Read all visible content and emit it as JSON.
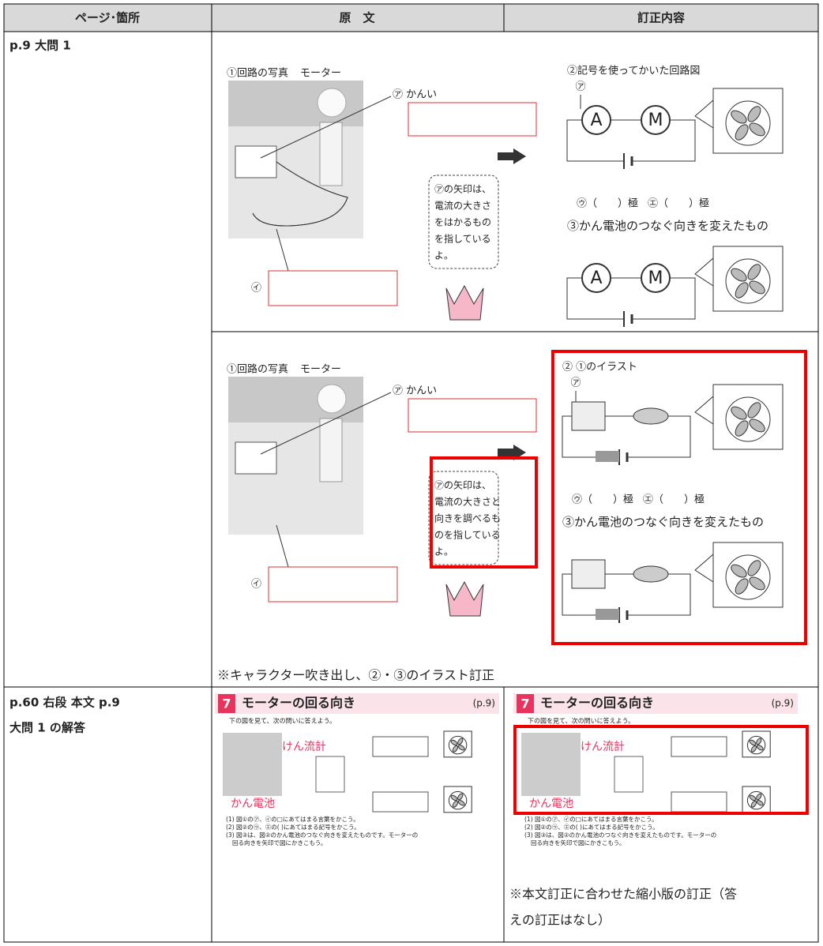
{
  "table": {
    "headers": [
      "ページ･箇所",
      "原　文",
      "訂正内容"
    ],
    "rows": [
      {
        "location": "p.9 大問 1",
        "original": {
          "photo_title": "①回路の写真",
          "motor": "モーター",
          "label_a": "㋐ かんい",
          "label_i": "㋑",
          "bubble": [
            "㋐の矢印は、",
            "電流の大きさ",
            "をはかるもの",
            "を指している",
            "よ。"
          ],
          "diagram_title": "②記号を使ってかいた回路図",
          "mark_a": "㋐",
          "ammeter": "A",
          "motor_symbol": "M",
          "pole_u": "㋒（　　）極",
          "pole_e": "㋓（　　）極",
          "diagram3_title": "③かん電池のつなぐ向きを変えたもの"
        },
        "corrected": {
          "photo_title": "①回路の写真",
          "motor": "モーター",
          "label_a": "㋐ かんい",
          "label_i": "㋑",
          "bubble": [
            "㋐の矢印は、",
            "電流の大きさと",
            "向きを調べるも",
            "のを指している",
            "よ。"
          ],
          "diagram_title": "② ①のイラスト",
          "mark_a": "㋐",
          "pole_u": "㋒（　　）極",
          "pole_e": "㋓（　　）極",
          "diagram3_title": "③かん電池のつなぐ向きを変えたもの"
        },
        "note": "※キャラクター吹き出し、②・③のイラスト訂正"
      },
      {
        "location": [
          "p.60 右段 本文 p.9",
          "大問 1 の解答"
        ],
        "original": {
          "number": "7",
          "title": "モーターの回る向き",
          "page": "(p.9)",
          "instruction": "下の図を見て、次の問いに答えよう。",
          "answer_a": "けん流計",
          "answer_i": "かん電池",
          "questions": [
            "(1) 図①の㋐、㋑の□にあてはまる言葉をかこう。",
            "(2) 図②の㋒、㋓の( )にあてはまる記号をかこう。",
            "(3) 図③は、図②のかん電池のつなぐ向きを変えたものです。モーターの",
            "回る向きを矢印で図にかきこもう。"
          ]
        },
        "corrected": {
          "number": "7",
          "title": "モーターの回る向き",
          "page": "(p.9)",
          "instruction": "下の図を見て、次の問いに答えよう。",
          "answer_a": "けん流計",
          "answer_i": "かん電池",
          "questions": [
            "(1) 図①の㋐、㋑の□にあてはまる言葉をかこう。",
            "(2) 図②の㋒、㋓の( )にあてはまる記号をかこう。",
            "(3) 図③は、図②のかん電池のつなぐ向きを変えたものです。モーターの",
            "回る向きを矢印で図にかきこもう。"
          ]
        },
        "note": [
          "※本文訂正に合わせた縮小版の訂正（答",
          "えの訂正はなし）"
        ]
      }
    ]
  }
}
